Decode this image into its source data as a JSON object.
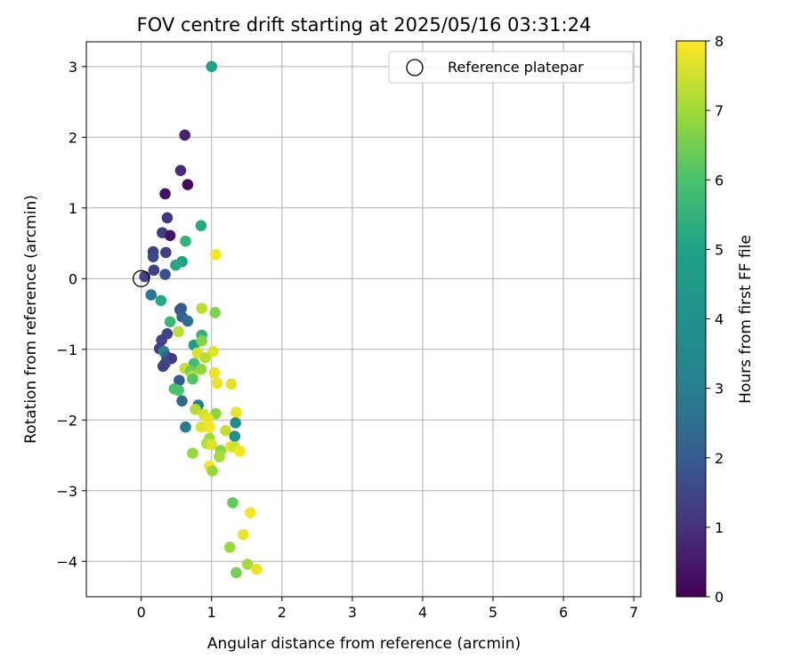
{
  "chart_data": {
    "type": "scatter",
    "title": "FOV centre drift starting at 2025/05/16 03:31:24",
    "xlabel": "Angular distance from reference (arcmin)",
    "ylabel": "Rotation from reference (arcmin)",
    "xlim": [
      -0.78,
      7.1
    ],
    "ylim": [
      -4.5,
      3.35
    ],
    "xticks": [
      0,
      1,
      2,
      3,
      4,
      5,
      6,
      7
    ],
    "yticks": [
      -4,
      -3,
      -2,
      -1,
      0,
      1,
      2,
      3
    ],
    "grid": true,
    "legend": {
      "position": "top-right",
      "entries": [
        "Reference platepar"
      ]
    },
    "reference_point": {
      "x": 0,
      "y": 0
    },
    "colorbar": {
      "label": "Hours from first FF file",
      "min": 0,
      "max": 8,
      "ticks": [
        0,
        1,
        2,
        3,
        4,
        5,
        6,
        7,
        8
      ],
      "colormap": "viridis"
    },
    "points": [
      {
        "x": 0.62,
        "y": 2.03,
        "h": 0.7
      },
      {
        "x": 0.56,
        "y": 1.53,
        "h": 0.9
      },
      {
        "x": 0.66,
        "y": 1.33,
        "h": 0.2
      },
      {
        "x": 0.34,
        "y": 1.2,
        "h": 0.3
      },
      {
        "x": 0.37,
        "y": 0.86,
        "h": 1.1
      },
      {
        "x": 0.3,
        "y": 0.65,
        "h": 1.3
      },
      {
        "x": 0.41,
        "y": 0.61,
        "h": 0.4
      },
      {
        "x": 0.17,
        "y": 0.38,
        "h": 1.3
      },
      {
        "x": 0.35,
        "y": 0.37,
        "h": 1.3
      },
      {
        "x": 0.17,
        "y": 0.31,
        "h": 1.5
      },
      {
        "x": 0.18,
        "y": 0.12,
        "h": 1.3
      },
      {
        "x": 0.05,
        "y": 0.03,
        "h": 1.4
      },
      {
        "x": 0.34,
        "y": 0.06,
        "h": 1.8
      },
      {
        "x": 0.14,
        "y": -0.23,
        "h": 2.8
      },
      {
        "x": 0.28,
        "y": -0.31,
        "h": 5.2
      },
      {
        "x": 1.0,
        "y": 3.0,
        "h": 5.0
      },
      {
        "x": 0.85,
        "y": 0.75,
        "h": 5.2
      },
      {
        "x": 0.63,
        "y": 0.53,
        "h": 5.5
      },
      {
        "x": 0.58,
        "y": 0.24,
        "h": 5.0
      },
      {
        "x": 0.49,
        "y": 0.19,
        "h": 5.2
      },
      {
        "x": 1.06,
        "y": 0.34,
        "h": 7.9
      },
      {
        "x": 0.57,
        "y": -0.42,
        "h": 2.3
      },
      {
        "x": 0.55,
        "y": -0.44,
        "h": 1.9
      },
      {
        "x": 0.58,
        "y": -0.54,
        "h": 2.2
      },
      {
        "x": 0.66,
        "y": -0.6,
        "h": 2.5
      },
      {
        "x": 0.41,
        "y": -0.61,
        "h": 5.7
      },
      {
        "x": 0.86,
        "y": -0.42,
        "h": 7.3
      },
      {
        "x": 1.05,
        "y": -0.48,
        "h": 6.6
      },
      {
        "x": 0.53,
        "y": -0.75,
        "h": 7.3
      },
      {
        "x": 0.86,
        "y": -0.8,
        "h": 5.5
      },
      {
        "x": 0.37,
        "y": -0.78,
        "h": 1.4
      },
      {
        "x": 0.29,
        "y": -0.87,
        "h": 1.4
      },
      {
        "x": 0.26,
        "y": -0.99,
        "h": 1.3
      },
      {
        "x": 0.32,
        "y": -1.03,
        "h": 3.3
      },
      {
        "x": 0.36,
        "y": -1.1,
        "h": 2.2
      },
      {
        "x": 0.43,
        "y": -1.13,
        "h": 1.2
      },
      {
        "x": 0.34,
        "y": -1.2,
        "h": 1.6
      },
      {
        "x": 0.31,
        "y": -1.24,
        "h": 1.4
      },
      {
        "x": 0.75,
        "y": -0.94,
        "h": 4.9
      },
      {
        "x": 0.86,
        "y": -0.88,
        "h": 6.7
      },
      {
        "x": 0.8,
        "y": -1.05,
        "h": 7.6
      },
      {
        "x": 1.02,
        "y": -1.03,
        "h": 7.7
      },
      {
        "x": 0.91,
        "y": -1.12,
        "h": 7.3
      },
      {
        "x": 0.75,
        "y": -1.2,
        "h": 5.8
      },
      {
        "x": 0.85,
        "y": -1.28,
        "h": 6.8
      },
      {
        "x": 0.62,
        "y": -1.27,
        "h": 7.4
      },
      {
        "x": 0.7,
        "y": -1.31,
        "h": 6.5
      },
      {
        "x": 0.73,
        "y": -1.38,
        "h": 7.3
      },
      {
        "x": 0.73,
        "y": -1.42,
        "h": 6.1
      },
      {
        "x": 1.04,
        "y": -1.33,
        "h": 7.8
      },
      {
        "x": 1.08,
        "y": -1.48,
        "h": 7.8
      },
      {
        "x": 1.28,
        "y": -1.49,
        "h": 7.7
      },
      {
        "x": 0.54,
        "y": -1.44,
        "h": 2.0
      },
      {
        "x": 0.47,
        "y": -1.56,
        "h": 6.0
      },
      {
        "x": 0.53,
        "y": -1.58,
        "h": 6.0
      },
      {
        "x": 0.58,
        "y": -1.73,
        "h": 2.3
      },
      {
        "x": 0.81,
        "y": -1.79,
        "h": 3.0
      },
      {
        "x": 0.77,
        "y": -1.85,
        "h": 7.2
      },
      {
        "x": 0.89,
        "y": -1.92,
        "h": 7.6
      },
      {
        "x": 1.06,
        "y": -1.91,
        "h": 6.8
      },
      {
        "x": 0.95,
        "y": -1.98,
        "h": 7.8
      },
      {
        "x": 0.97,
        "y": -2.1,
        "h": 7.9
      },
      {
        "x": 0.85,
        "y": -2.1,
        "h": 7.7
      },
      {
        "x": 0.63,
        "y": -2.1,
        "h": 3.0
      },
      {
        "x": 1.35,
        "y": -1.89,
        "h": 7.8
      },
      {
        "x": 1.34,
        "y": -2.04,
        "h": 3.8
      },
      {
        "x": 1.2,
        "y": -2.15,
        "h": 7.4
      },
      {
        "x": 1.33,
        "y": -2.23,
        "h": 4.0
      },
      {
        "x": 0.97,
        "y": -2.26,
        "h": 7.0
      },
      {
        "x": 0.93,
        "y": -2.33,
        "h": 7.2
      },
      {
        "x": 1.0,
        "y": -2.35,
        "h": 7.7
      },
      {
        "x": 1.13,
        "y": -2.43,
        "h": 6.8
      },
      {
        "x": 1.27,
        "y": -2.38,
        "h": 7.8
      },
      {
        "x": 1.33,
        "y": -2.38,
        "h": 7.5
      },
      {
        "x": 1.4,
        "y": -2.44,
        "h": 7.9
      },
      {
        "x": 1.11,
        "y": -2.52,
        "h": 7.1
      },
      {
        "x": 0.73,
        "y": -2.47,
        "h": 6.9
      },
      {
        "x": 0.97,
        "y": -2.65,
        "h": 7.9
      },
      {
        "x": 1.01,
        "y": -2.72,
        "h": 6.9
      },
      {
        "x": 1.3,
        "y": -3.17,
        "h": 6.3
      },
      {
        "x": 1.55,
        "y": -3.31,
        "h": 7.9
      },
      {
        "x": 1.45,
        "y": -3.62,
        "h": 7.8
      },
      {
        "x": 1.26,
        "y": -3.8,
        "h": 6.9
      },
      {
        "x": 1.51,
        "y": -4.04,
        "h": 7.1
      },
      {
        "x": 1.64,
        "y": -4.11,
        "h": 7.8
      },
      {
        "x": 1.35,
        "y": -4.16,
        "h": 6.5
      }
    ]
  }
}
